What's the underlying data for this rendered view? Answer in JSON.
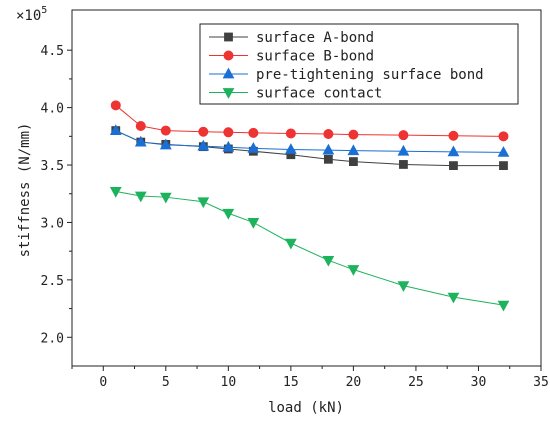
{
  "chart_data": {
    "type": "line",
    "xlabel": "load (kN)",
    "ylabel": "stiffness (N/mm)",
    "y_multiplier_label": "×10",
    "y_multiplier_exponent": "5",
    "xlim": [
      -2.5,
      35
    ],
    "ylim": [
      1.75,
      4.85
    ],
    "x_ticks": [
      0,
      5,
      10,
      15,
      20,
      25,
      30,
      35
    ],
    "y_ticks": [
      2.0,
      2.5,
      3.0,
      3.5,
      4.0,
      4.5
    ],
    "x_tick_labels": [
      "0",
      "5",
      "10",
      "15",
      "20",
      "25",
      "30",
      "35"
    ],
    "y_tick_labels": [
      "2.0",
      "2.5",
      "3.0",
      "3.5",
      "4.0",
      "4.5"
    ],
    "legend_position": "top-right",
    "grid": false,
    "x": [
      1,
      3,
      5,
      8,
      10,
      12,
      15,
      18,
      20,
      24,
      28,
      32
    ],
    "series": [
      {
        "name": "surface A-bond",
        "color": "#404040",
        "marker": "square",
        "values": [
          3.8,
          3.7,
          3.68,
          3.66,
          3.64,
          3.62,
          3.59,
          3.55,
          3.53,
          3.505,
          3.495,
          3.495
        ]
      },
      {
        "name": "surface B-bond",
        "color": "#ee3333",
        "marker": "circle",
        "values": [
          4.02,
          3.84,
          3.8,
          3.79,
          3.785,
          3.78,
          3.775,
          3.77,
          3.765,
          3.76,
          3.755,
          3.75
        ]
      },
      {
        "name": "pre-tightening surface bond",
        "color": "#1a6fd4",
        "marker": "triangle-up",
        "values": [
          3.8,
          3.7,
          3.675,
          3.665,
          3.655,
          3.645,
          3.635,
          3.63,
          3.625,
          3.62,
          3.615,
          3.61
        ]
      },
      {
        "name": "surface contact",
        "color": "#1db35c",
        "marker": "triangle-down",
        "values": [
          3.27,
          3.23,
          3.22,
          3.18,
          3.08,
          3.0,
          2.82,
          2.67,
          2.59,
          2.45,
          2.35,
          2.28
        ]
      }
    ]
  }
}
